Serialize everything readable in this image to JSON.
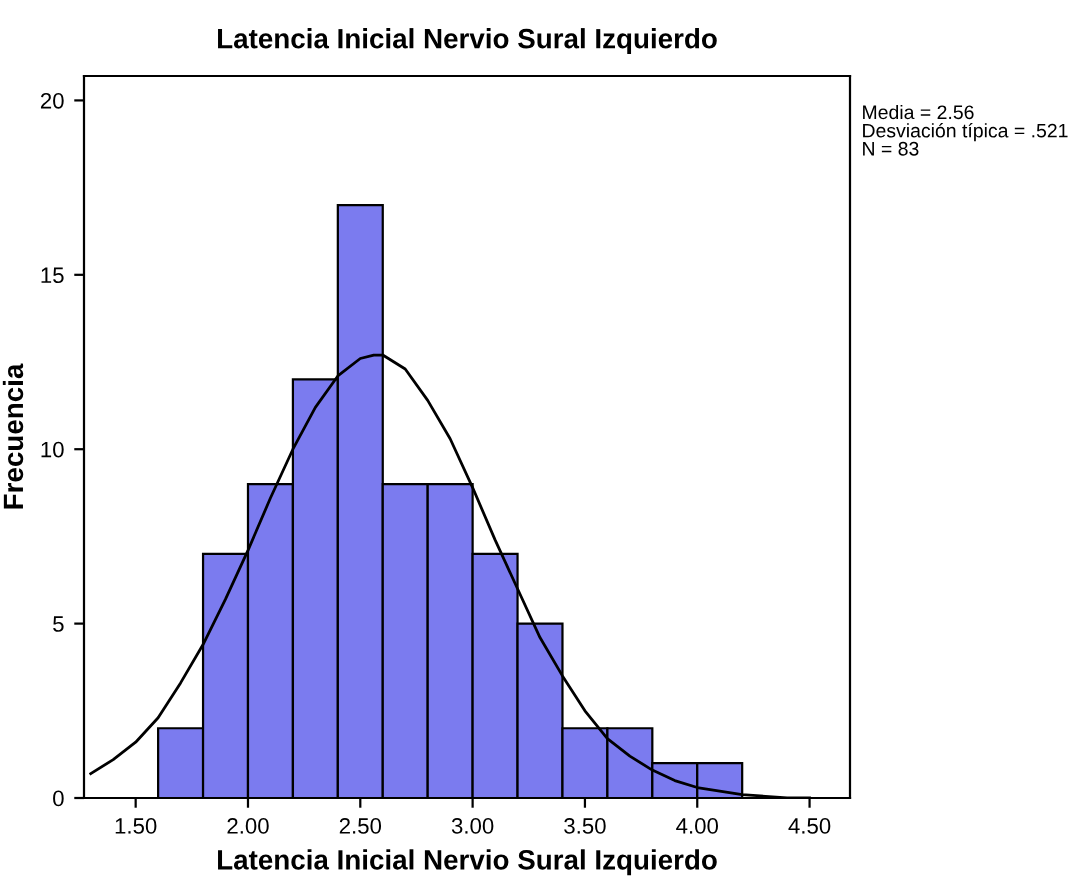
{
  "chart_data": {
    "type": "histogram",
    "title": "Latencia Inicial Nervio Sural Izquierdo",
    "xlabel": "Latencia Inicial Nervio Sural Izquierdo",
    "ylabel": "Frecuencia",
    "bins": [
      1.6,
      1.8,
      2.0,
      2.2,
      2.4,
      2.6,
      2.8,
      3.0,
      3.2,
      3.4,
      3.6,
      3.8,
      4.0,
      4.2
    ],
    "values": [
      2,
      7,
      9,
      12,
      17,
      9,
      9,
      7,
      5,
      2,
      2,
      1,
      1
    ],
    "color": "#7b7bef",
    "series": [
      {
        "type": "line",
        "color": "#000000",
        "x": [
          1.3,
          1.4,
          1.5,
          1.6,
          1.7,
          1.8,
          1.9,
          2.0,
          2.1,
          2.2,
          2.3,
          2.4,
          2.5,
          2.56,
          2.6,
          2.7,
          2.8,
          2.9,
          3.0,
          3.1,
          3.2,
          3.3,
          3.4,
          3.5,
          3.6,
          3.7,
          3.8,
          3.9,
          4.0,
          4.2,
          4.4,
          4.5
        ],
        "values": [
          0.7,
          1.1,
          1.6,
          2.3,
          3.3,
          4.4,
          5.7,
          7.1,
          8.6,
          10.0,
          11.2,
          12.1,
          12.6,
          12.7,
          12.7,
          12.3,
          11.4,
          10.3,
          8.9,
          7.4,
          6.0,
          4.6,
          3.5,
          2.5,
          1.7,
          1.2,
          0.8,
          0.5,
          0.3,
          0.1,
          0.0,
          0.0
        ]
      }
    ],
    "xlim": [
      1.27,
      4.68
    ],
    "ylim": [
      0,
      20.7
    ],
    "xticks": [
      {
        "value": 1.5,
        "label": "1.50"
      },
      {
        "value": 2.0,
        "label": "2.00"
      },
      {
        "value": 2.5,
        "label": "2.50"
      },
      {
        "value": 3.0,
        "label": "3.00"
      },
      {
        "value": 3.5,
        "label": "3.50"
      },
      {
        "value": 4.0,
        "label": "4.00"
      },
      {
        "value": 4.5,
        "label": "4.50"
      }
    ],
    "yticks": [
      0,
      5,
      10,
      15,
      20
    ],
    "grid": false,
    "legend": false,
    "annotations": [
      "Media = 2.56",
      "Desviación típica = .521",
      "N = 83"
    ]
  }
}
